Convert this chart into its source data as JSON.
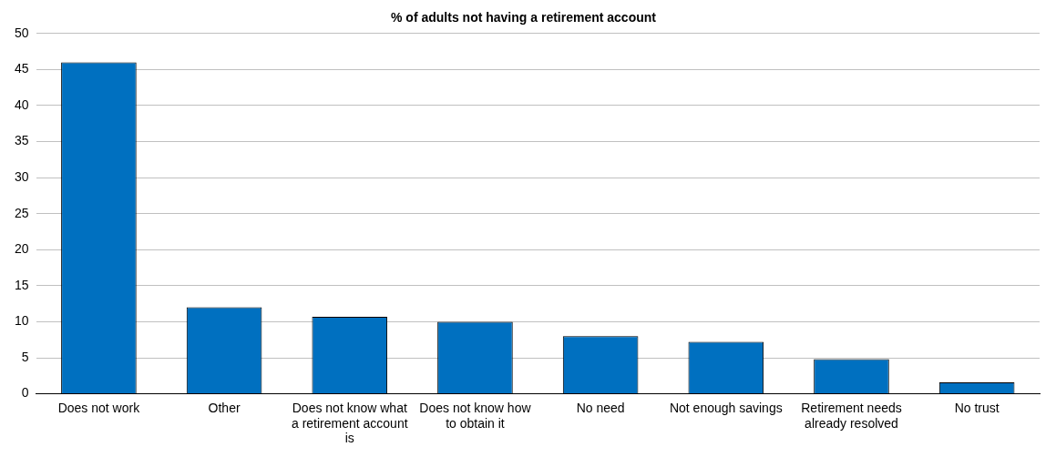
{
  "chart_data": {
    "type": "bar",
    "title": "% of adults not having a retirement account",
    "categories": [
      "Does not work",
      "Other",
      "Does not know what a retirement account is",
      "Does not know how to obtain it",
      "No need",
      "Not enough savings",
      "Retirement needs already resolved",
      "No trust"
    ],
    "values": [
      46,
      12,
      10.7,
      10,
      8,
      7.2,
      4.8,
      1.6
    ],
    "color": "#0070c0",
    "ylim": [
      0,
      50
    ],
    "yticks": [
      0,
      5,
      10,
      15,
      20,
      25,
      30,
      35,
      40,
      45,
      50
    ],
    "grid": "y",
    "legend": false
  }
}
